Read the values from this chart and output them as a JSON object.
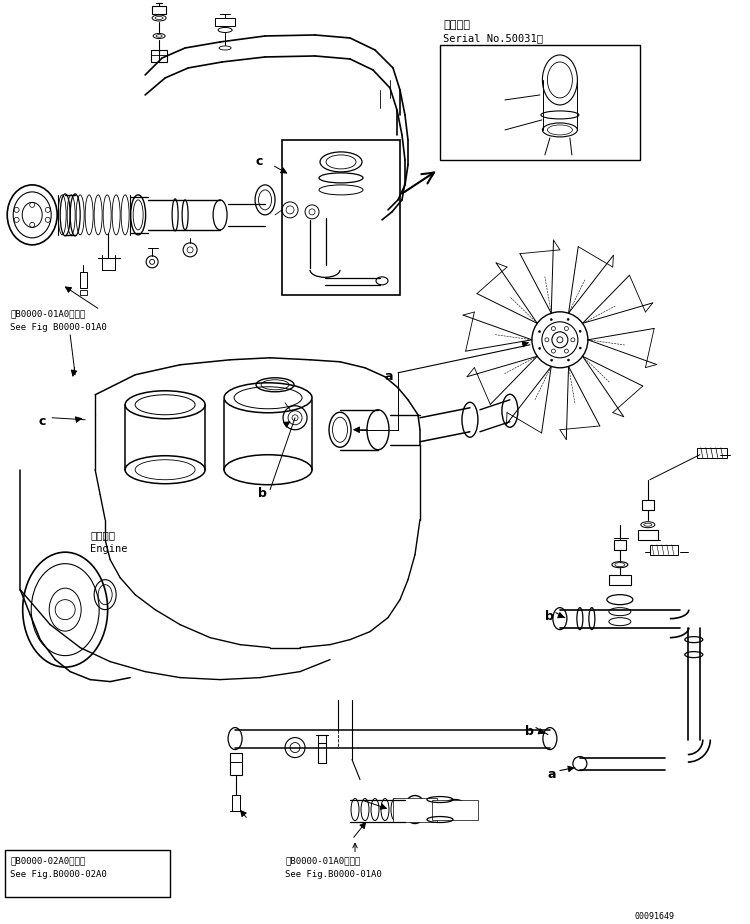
{
  "bg_color": "#ffffff",
  "line_color": "#000000",
  "fig_width": 7.5,
  "fig_height": 9.24,
  "title_text1": "適用号機",
  "title_text2": "Serial No.50031～",
  "label_a": "a",
  "label_b": "b",
  "label_c": "c",
  "ref_box1_line1": "第B0000-01A0図参照",
  "ref_box1_line2": "See Fig B0000-01A0",
  "ref_box2_line1": "第B0000-02A0図参照",
  "ref_box2_line2": "See Fig.B0000-02A0",
  "ref_box3_line1": "第B0000-01A0図参照",
  "ref_box3_line2": "See Fig.B0000-01A0",
  "engine_label1": "エンジン",
  "engine_label2": "Engine",
  "doc_number": "00091649",
  "font_size_small": 6.5,
  "font_size_medium": 7.5,
  "font_size_label": 9
}
